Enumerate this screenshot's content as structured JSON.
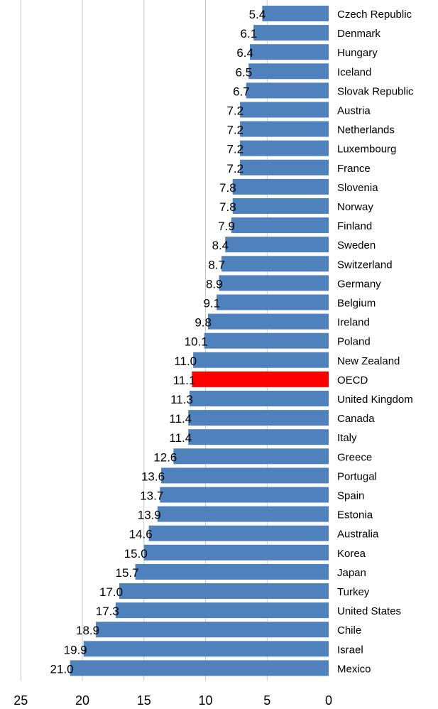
{
  "chart_data": {
    "type": "bar",
    "orientation": "horizontal",
    "title": "",
    "xlabel": "",
    "ylabel": "",
    "xlim": [
      0,
      25
    ],
    "x_direction": "reversed",
    "ticks": [
      25,
      20,
      15,
      10,
      5,
      0
    ],
    "grid": true,
    "categories": [
      "Czech Republic",
      "Denmark",
      "Hungary",
      "Iceland",
      "Slovak Republic",
      "Austria",
      "Netherlands",
      "Luxembourg",
      "France",
      "Slovenia",
      "Norway",
      "Finland",
      "Sweden",
      "Switzerland",
      "Germany",
      "Belgium",
      "Ireland",
      "Poland",
      "New Zealand",
      "OECD",
      "United Kingdom",
      "Canada",
      "Italy",
      "Greece",
      "Portugal",
      "Spain",
      "Estonia",
      "Australia",
      "Korea",
      "Japan",
      "Turkey",
      "United States",
      "Chile",
      "Israel",
      "Mexico"
    ],
    "values": [
      5.4,
      6.1,
      6.4,
      6.5,
      6.7,
      7.2,
      7.2,
      7.2,
      7.2,
      7.8,
      7.8,
      7.9,
      8.4,
      8.7,
      8.9,
      9.1,
      9.8,
      10.1,
      11.0,
      11.1,
      11.3,
      11.4,
      11.4,
      12.6,
      13.6,
      13.7,
      13.9,
      14.6,
      15.0,
      15.7,
      17.0,
      17.3,
      18.9,
      19.9,
      21.0
    ],
    "labels": [
      "5.4",
      "6.1",
      "6.4",
      "6.5",
      "6.7",
      "7.2",
      "7.2",
      "7.2",
      "7.2",
      "7.8",
      "7.8",
      "7.9",
      "8.4",
      "8.7",
      "8.9",
      "9.1",
      "9.8",
      "10.1",
      "11.0",
      "11.1",
      "11.3",
      "11.4",
      "11.4",
      "12.6",
      "13.6",
      "13.7",
      "13.9",
      "14.6",
      "15.0",
      "15.7",
      "17.0",
      "17.3",
      "18.9",
      "19.9",
      "21.0"
    ],
    "highlight": "OECD",
    "colors": {
      "bar": "#4f81bd",
      "highlight": "#ff0000",
      "grid": "#c8c8c8"
    }
  }
}
